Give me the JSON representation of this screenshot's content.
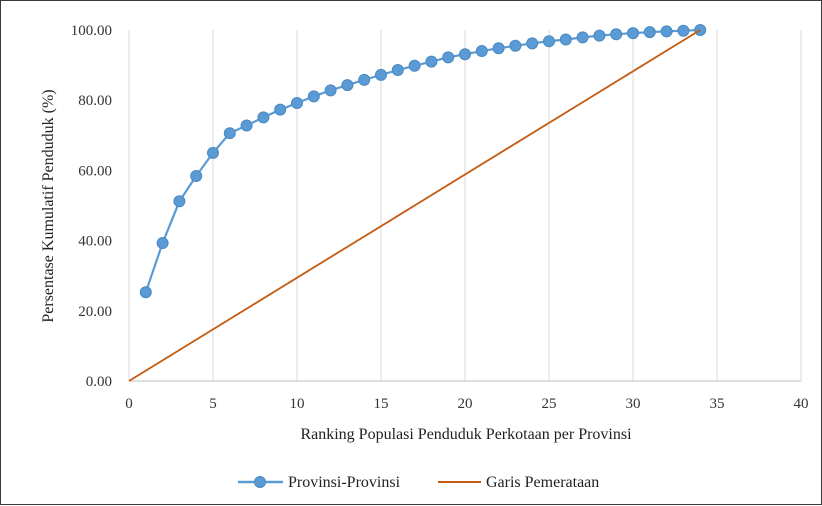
{
  "chart_data": {
    "type": "line",
    "xlabel": "Ranking Populasi Penduduk Perkotaan per Provinsi",
    "ylabel": "Persentase Kumulatif  Penduduk (%)",
    "xlim": [
      0,
      40
    ],
    "ylim": [
      0,
      100
    ],
    "x_ticks": [
      "0",
      "5",
      "10",
      "15",
      "20",
      "25",
      "30",
      "35",
      "40"
    ],
    "y_ticks": [
      "0.00",
      "20.00",
      "40.00",
      "60.00",
      "80.00",
      "100.00"
    ],
    "grid": "vertical",
    "legend_position": "bottom",
    "series": [
      {
        "name": "Provinsi-Provinsi",
        "color": "#5b9bd5",
        "marker": "circle",
        "x": [
          1,
          2,
          3,
          4,
          5,
          6,
          7,
          8,
          9,
          10,
          11,
          12,
          13,
          14,
          15,
          16,
          17,
          18,
          19,
          20,
          21,
          22,
          23,
          24,
          25,
          26,
          27,
          28,
          29,
          30,
          31,
          32,
          33,
          34
        ],
        "y": [
          25.3,
          39.3,
          51.2,
          58.4,
          65.0,
          70.6,
          72.8,
          75.1,
          77.3,
          79.2,
          81.1,
          82.8,
          84.3,
          85.8,
          87.2,
          88.6,
          89.8,
          91.0,
          92.2,
          93.1,
          94.0,
          94.8,
          95.5,
          96.2,
          96.8,
          97.3,
          97.9,
          98.4,
          98.8,
          99.1,
          99.4,
          99.6,
          99.8,
          100.0
        ]
      },
      {
        "name": "Garis Pemerataan",
        "color": "#c55a11",
        "marker": "none",
        "x": [
          0,
          34
        ],
        "y": [
          0,
          100
        ]
      }
    ]
  }
}
